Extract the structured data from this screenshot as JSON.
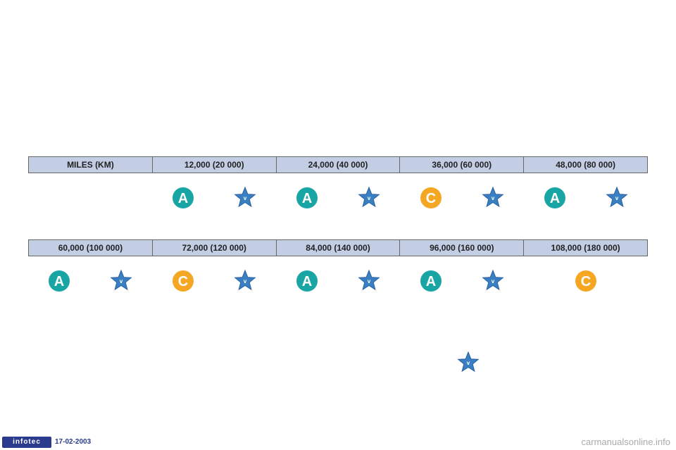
{
  "colors": {
    "header_bg": "#c3cde4",
    "header_border": "#666666",
    "badge_a_fill": "#1aa5a5",
    "badge_c_fill": "#f5a623",
    "badge_text": "#ffffff",
    "star_fill": "#3a7fc4",
    "star_stroke": "#2a5f9e",
    "infotec_bg": "#2a3a8c",
    "watermark": "#aaaaaa"
  },
  "header1": {
    "label": "MILES (KM)",
    "cells": [
      "12,000 (20 000)",
      "24,000 (40 000)",
      "36,000 (60 000)",
      "48,000 (80 000)"
    ]
  },
  "icons1": [
    {
      "type": "empty"
    },
    {
      "type": "pair",
      "badge": "A"
    },
    {
      "type": "pair",
      "badge": "A"
    },
    {
      "type": "pair",
      "badge": "C"
    },
    {
      "type": "pair",
      "badge": "A"
    }
  ],
  "header2": {
    "cells": [
      "60,000 (100 000)",
      "72,000 (120 000)",
      "84,000 (140 000)",
      "96,000 (160 000)",
      "108,000 (180 000)"
    ]
  },
  "icons2": [
    {
      "type": "pair",
      "badge": "A"
    },
    {
      "type": "pair",
      "badge": "C"
    },
    {
      "type": "pair",
      "badge": "A"
    },
    {
      "type": "pair",
      "badge": "A"
    },
    {
      "type": "single",
      "badge": "C"
    }
  ],
  "footer": {
    "infotec": "infotec",
    "date": "17-02-2003"
  },
  "watermark": "carmanualsonline.info"
}
